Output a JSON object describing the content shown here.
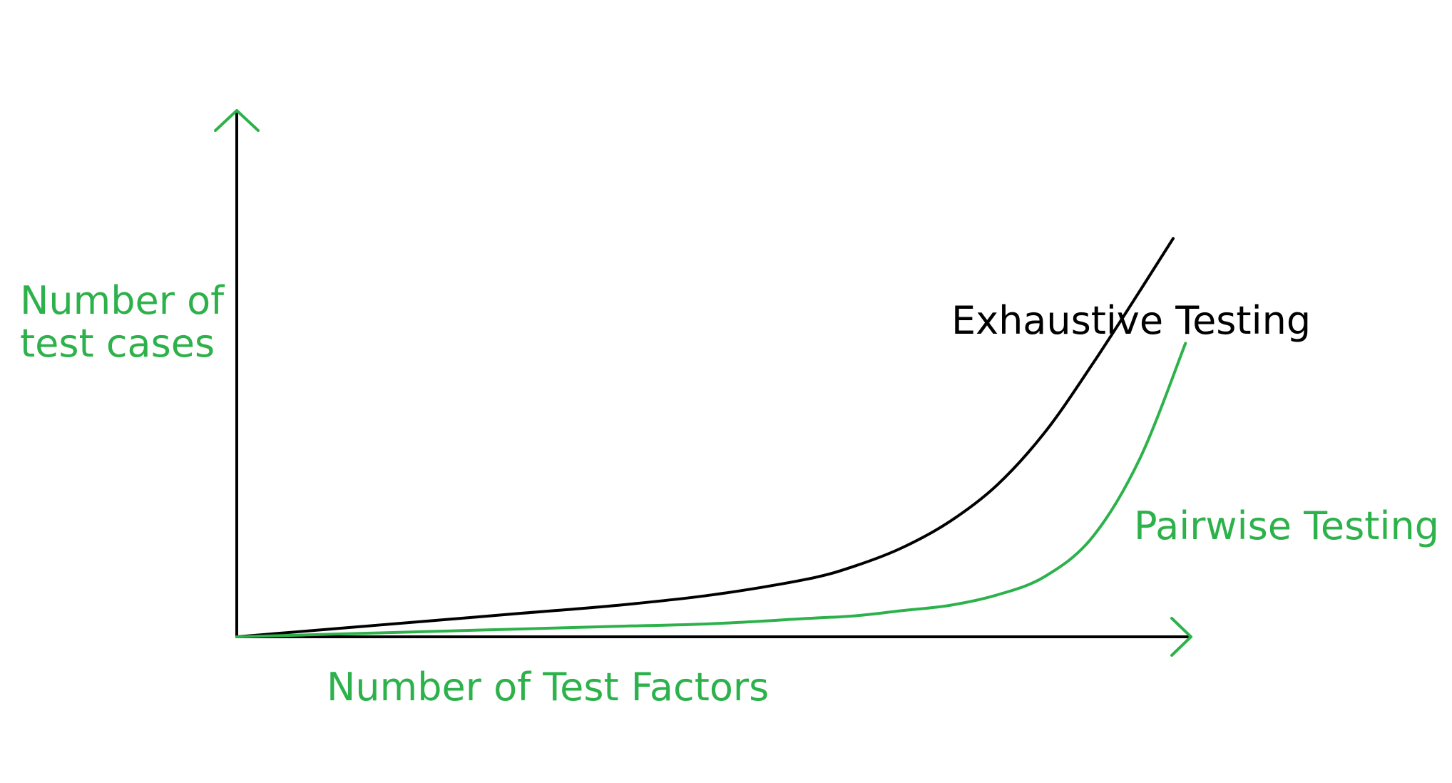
{
  "colors": {
    "axis": "#000000",
    "arrow_heads": "#2db24b",
    "label_green": "#2db24b",
    "exhaustive": "#000000",
    "pairwise": "#2db24b"
  },
  "chart_data": {
    "type": "line",
    "xlabel": "Number of Test Factors",
    "ylabel_lines": [
      "Number of",
      "test cases"
    ],
    "grid": false,
    "legend": "none",
    "xlim": [
      0,
      1
    ],
    "ylim": [
      0,
      1
    ],
    "series": [
      {
        "name": "Exhaustive Testing",
        "x": [
          0,
          0.1,
          0.2,
          0.3,
          0.4,
          0.5,
          0.6,
          0.65,
          0.7,
          0.75,
          0.8,
          0.85,
          0.9,
          0.95,
          0.985
        ],
        "y": [
          0,
          0.015,
          0.03,
          0.045,
          0.06,
          0.08,
          0.11,
          0.135,
          0.17,
          0.22,
          0.29,
          0.39,
          0.52,
          0.66,
          0.76
        ]
      },
      {
        "name": "Pairwise Testing",
        "x": [
          0,
          0.1,
          0.2,
          0.3,
          0.4,
          0.5,
          0.6,
          0.65,
          0.7,
          0.75,
          0.8,
          0.85,
          0.9,
          0.95,
          0.998
        ],
        "y": [
          0,
          0.005,
          0.01,
          0.015,
          0.02,
          0.025,
          0.035,
          0.04,
          0.05,
          0.06,
          0.08,
          0.115,
          0.19,
          0.34,
          0.56
        ]
      }
    ]
  }
}
